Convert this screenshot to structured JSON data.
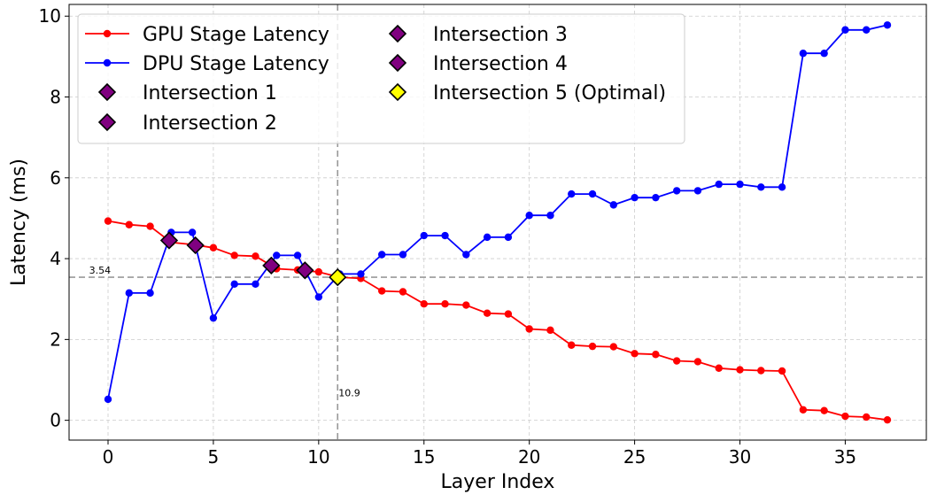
{
  "chart_data": {
    "type": "line",
    "xlabel": "Layer Index",
    "ylabel": "Latency (ms)",
    "xlim": [
      -1.85,
      38.85
    ],
    "ylim": [
      -0.49,
      10.29
    ],
    "xticks": [
      0,
      5,
      10,
      15,
      20,
      25,
      30,
      35
    ],
    "yticks": [
      0,
      2,
      4,
      6,
      8,
      10
    ],
    "grid": true,
    "legend_position": "top-left",
    "x": [
      0,
      1,
      2,
      3,
      4,
      5,
      6,
      7,
      8,
      9,
      10,
      11,
      12,
      13,
      14,
      15,
      16,
      17,
      18,
      19,
      20,
      21,
      22,
      23,
      24,
      25,
      26,
      27,
      28,
      29,
      30,
      31,
      32,
      33,
      34,
      35,
      36,
      37
    ],
    "series": [
      {
        "name": "GPU Stage Latency",
        "color": "#ff0000",
        "values": [
          4.93,
          4.84,
          4.8,
          4.4,
          4.35,
          4.27,
          4.08,
          4.06,
          3.75,
          3.72,
          3.67,
          3.54,
          3.51,
          3.2,
          3.18,
          2.88,
          2.88,
          2.85,
          2.65,
          2.63,
          2.26,
          2.23,
          1.86,
          1.83,
          1.82,
          1.65,
          1.63,
          1.47,
          1.45,
          1.29,
          1.25,
          1.23,
          1.22,
          0.26,
          0.24,
          0.1,
          0.08,
          0.01
        ]
      },
      {
        "name": "DPU Stage Latency",
        "color": "#0000ff",
        "values": [
          0.52,
          3.15,
          3.15,
          4.65,
          4.65,
          2.53,
          3.37,
          3.37,
          4.08,
          4.08,
          3.05,
          3.62,
          3.62,
          4.1,
          4.1,
          4.57,
          4.57,
          4.1,
          4.53,
          4.53,
          5.07,
          5.07,
          5.6,
          5.6,
          5.33,
          5.51,
          5.51,
          5.68,
          5.68,
          5.84,
          5.84,
          5.77,
          5.77,
          9.08,
          9.08,
          9.66,
          9.66,
          9.78
        ]
      }
    ],
    "intersections": [
      {
        "name": "Intersection 1",
        "x": 2.9,
        "y": 4.45,
        "color": "#800080"
      },
      {
        "name": "Intersection 2",
        "x": 4.15,
        "y": 4.33,
        "color": "#800080"
      },
      {
        "name": "Intersection 3",
        "x": 7.75,
        "y": 3.83,
        "color": "#800080"
      },
      {
        "name": "Intersection 4",
        "x": 9.35,
        "y": 3.71,
        "color": "#800080"
      },
      {
        "name": "Intersection 5 (Optimal)",
        "x": 10.9,
        "y": 3.54,
        "color": "#ffff00"
      }
    ],
    "reference_lines": {
      "horizontal": {
        "y": 3.54,
        "label": "3.54"
      },
      "vertical": {
        "x": 10.9,
        "label": "10.9"
      }
    }
  }
}
